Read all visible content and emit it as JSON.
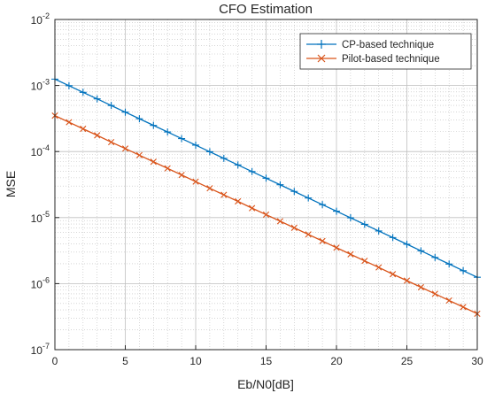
{
  "chart_data": {
    "type": "line",
    "title": "CFO Estimation",
    "xlabel": "Eb/N0[dB]",
    "ylabel": "MSE",
    "xlim": [
      0,
      30
    ],
    "ylim": [
      1e-07,
      0.01
    ],
    "yscale": "log",
    "grid": true,
    "minor_grid": true,
    "legend_position": "top-right",
    "x_ticks": [
      "0",
      "5",
      "10",
      "15",
      "20",
      "25",
      "30"
    ],
    "y_ticks": [
      {
        "base": "10",
        "exp": "-7"
      },
      {
        "base": "10",
        "exp": "-6"
      },
      {
        "base": "10",
        "exp": "-5"
      },
      {
        "base": "10",
        "exp": "-4"
      },
      {
        "base": "10",
        "exp": "-3"
      },
      {
        "base": "10",
        "exp": "-2"
      }
    ],
    "x": [
      0,
      1,
      2,
      3,
      4,
      5,
      6,
      7,
      8,
      9,
      10,
      11,
      12,
      13,
      14,
      15,
      16,
      17,
      18,
      19,
      20,
      21,
      22,
      23,
      24,
      25,
      26,
      27,
      28,
      29,
      30
    ],
    "series": [
      {
        "name": "CP-based technique",
        "color": "#0072BD",
        "marker": "plus",
        "values": [
          0.00125,
          0.000993,
          0.000789,
          0.000627,
          0.000498,
          0.000395,
          0.000314,
          0.000249,
          0.000198,
          0.000157,
          0.000125,
          9.93e-05,
          7.89e-05,
          6.27e-05,
          4.98e-05,
          3.95e-05,
          3.14e-05,
          2.49e-05,
          1.98e-05,
          1.57e-05,
          1.25e-05,
          9.93e-06,
          7.89e-06,
          6.27e-06,
          4.98e-06,
          3.95e-06,
          3.14e-06,
          2.49e-06,
          1.98e-06,
          1.57e-06,
          1.25e-06
        ]
      },
      {
        "name": "Pilot-based technique",
        "color": "#D95319",
        "marker": "x",
        "values": [
          0.00035,
          0.000278,
          0.000221,
          0.000176,
          0.000139,
          0.000111,
          8.81e-05,
          7e-05,
          5.56e-05,
          4.42e-05,
          3.5e-05,
          2.78e-05,
          2.21e-05,
          1.76e-05,
          1.39e-05,
          1.11e-05,
          8.81e-06,
          7e-06,
          5.56e-06,
          4.42e-06,
          3.5e-06,
          2.78e-06,
          2.21e-06,
          1.76e-06,
          1.39e-06,
          1.11e-06,
          8.81e-07,
          7e-07,
          5.56e-07,
          4.42e-07,
          3.5e-07
        ]
      }
    ]
  }
}
